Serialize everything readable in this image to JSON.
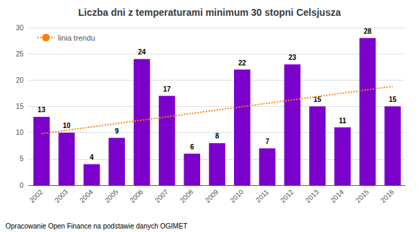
{
  "chart_data": {
    "type": "bar",
    "title": "Liczba dni z temperaturami minimum 30 stopni Celsjusza",
    "categories": [
      "2002",
      "2003",
      "2004",
      "2005",
      "2006",
      "2007",
      "2008",
      "2009",
      "2010",
      "2011",
      "2012",
      "2013",
      "2014",
      "2015",
      "2016"
    ],
    "series": [
      {
        "type": "bar",
        "color": "#7B00CC",
        "data_labels": true,
        "values": [
          13,
          10,
          4,
          9,
          24,
          17,
          6,
          8,
          22,
          7,
          23,
          15,
          11,
          28,
          15
        ]
      },
      {
        "type": "line",
        "name": "linia trendu",
        "color": "#FF8000",
        "line_style": "dotted",
        "values": [
          9.8,
          null,
          null,
          null,
          null,
          null,
          null,
          null,
          null,
          null,
          null,
          null,
          null,
          null,
          18.8
        ]
      }
    ],
    "ylim": [
      0,
      30
    ],
    "yticks": [
      0,
      5,
      10,
      15,
      20,
      25,
      30
    ],
    "grid": true,
    "legend": "upper left",
    "annotations": [
      "Opracowanie Open Finance na podstawie danych OGIMET"
    ]
  }
}
